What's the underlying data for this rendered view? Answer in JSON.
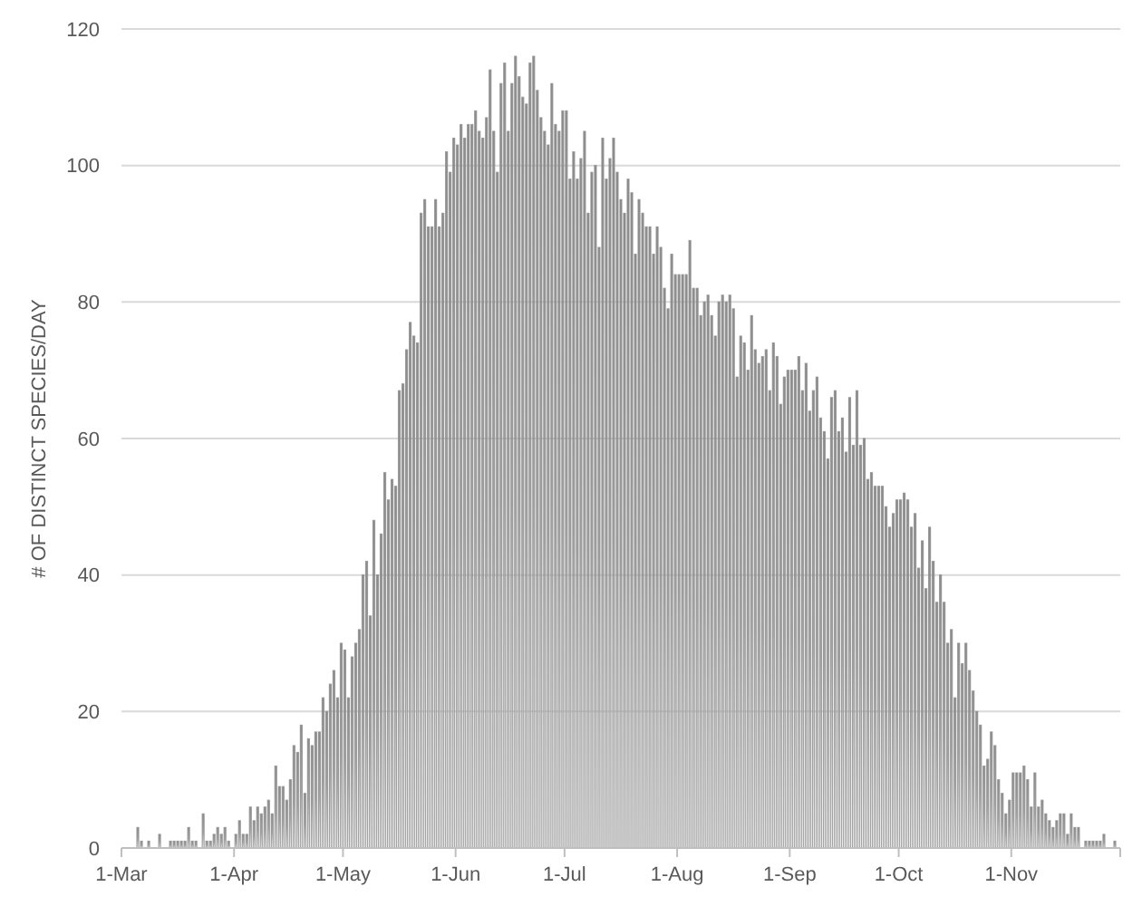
{
  "chart_data": {
    "type": "bar",
    "ylabel": "# OF DISTINCT SPECIES/DAY",
    "categories": [
      "1-Mar",
      null,
      null,
      null,
      null,
      null,
      null,
      null,
      null,
      null,
      null,
      null,
      null,
      null,
      null,
      null,
      null,
      null,
      null,
      null,
      null,
      null,
      null,
      null,
      null,
      null,
      null,
      null,
      null,
      null,
      null,
      "1-Apr",
      null,
      null,
      null,
      null,
      null,
      null,
      null,
      null,
      null,
      null,
      null,
      null,
      null,
      null,
      null,
      null,
      null,
      null,
      null,
      null,
      null,
      null,
      null,
      null,
      null,
      null,
      null,
      null,
      null,
      "1-May",
      null,
      null,
      null,
      null,
      null,
      null,
      null,
      null,
      null,
      null,
      null,
      null,
      null,
      null,
      null,
      null,
      null,
      null,
      null,
      null,
      null,
      null,
      null,
      null,
      null,
      null,
      null,
      null,
      null,
      null,
      "1-Jun",
      null,
      null,
      null,
      null,
      null,
      null,
      null,
      null,
      null,
      null,
      null,
      null,
      null,
      null,
      null,
      null,
      null,
      null,
      null,
      null,
      null,
      null,
      null,
      null,
      null,
      null,
      null,
      null,
      null,
      "1-Jul",
      null,
      null,
      null,
      null,
      null,
      null,
      null,
      null,
      null,
      null,
      null,
      null,
      null,
      null,
      null,
      null,
      null,
      null,
      null,
      null,
      null,
      null,
      null,
      null,
      null,
      null,
      null,
      null,
      null,
      null,
      "1-Aug",
      null,
      null,
      null,
      null,
      null,
      null,
      null,
      null,
      null,
      null,
      null,
      null,
      null,
      null,
      null,
      null,
      null,
      null,
      null,
      null,
      null,
      null,
      null,
      null,
      null,
      null,
      null,
      null,
      null,
      null,
      "1-Sep",
      null,
      null,
      null,
      null,
      null,
      null,
      null,
      null,
      null,
      null,
      null,
      null,
      null,
      null,
      null,
      null,
      null,
      null,
      null,
      null,
      null,
      null,
      null,
      null,
      null,
      null,
      null,
      null,
      null,
      "1-Oct",
      null,
      null,
      null,
      null,
      null,
      null,
      null,
      null,
      null,
      null,
      null,
      null,
      null,
      null,
      null,
      null,
      null,
      null,
      null,
      null,
      null,
      null,
      null,
      null,
      null,
      null,
      null,
      null,
      null,
      null,
      "1-Nov",
      null,
      null,
      null,
      null,
      null,
      null,
      null,
      null,
      null,
      null,
      null,
      null,
      null,
      null,
      null,
      null,
      null,
      null,
      null,
      null,
      null,
      null,
      null,
      null,
      null,
      null,
      null,
      null,
      null
    ],
    "values": [
      0,
      0,
      0,
      0,
      3,
      1,
      0,
      1,
      0,
      0,
      2,
      0,
      0,
      1,
      1,
      1,
      1,
      1,
      3,
      1,
      1,
      0,
      5,
      1,
      1,
      2,
      3,
      2,
      3,
      1,
      0,
      2,
      4,
      2,
      2,
      6,
      4,
      6,
      5,
      6,
      7,
      5,
      12,
      9,
      9,
      7,
      10,
      15,
      14,
      18,
      8,
      16,
      15,
      17,
      17,
      22,
      20,
      24,
      26,
      22,
      30,
      29,
      22,
      28,
      30,
      32,
      40,
      42,
      34,
      48,
      40,
      46,
      55,
      51,
      54,
      53,
      67,
      68,
      73,
      77,
      75,
      74,
      93,
      95,
      91,
      91,
      95,
      91,
      93,
      102,
      99,
      104,
      103,
      106,
      104,
      106,
      106,
      108,
      105,
      104,
      107,
      114,
      105,
      99,
      112,
      115,
      105,
      112,
      116,
      113,
      110,
      109,
      115,
      116,
      111,
      107,
      105,
      103,
      112,
      106,
      105,
      108,
      108,
      98,
      102,
      98,
      101,
      105,
      93,
      99,
      100,
      88,
      104,
      98,
      101,
      104,
      99,
      95,
      93,
      98,
      96,
      87,
      95,
      93,
      91,
      91,
      87,
      91,
      88,
      82,
      79,
      87,
      84,
      84,
      84,
      84,
      89,
      82,
      82,
      78,
      80,
      81,
      78,
      75,
      80,
      81,
      80,
      81,
      79,
      69,
      75,
      74,
      70,
      78,
      73,
      71,
      72,
      73,
      67,
      74,
      72,
      65,
      69,
      70,
      70,
      70,
      72,
      67,
      71,
      64,
      67,
      69,
      63,
      61,
      57,
      66,
      67,
      61,
      63,
      58,
      66,
      59,
      67,
      59,
      60,
      54,
      55,
      53,
      53,
      53,
      50,
      47,
      49,
      51,
      51,
      52,
      51,
      47,
      49,
      41,
      45,
      38,
      47,
      42,
      36,
      40,
      36,
      30,
      32,
      22,
      30,
      27,
      30,
      26,
      23,
      20,
      18,
      12,
      13,
      17,
      15,
      10,
      8,
      5,
      7,
      11,
      11,
      11,
      12,
      10,
      6,
      11,
      6,
      7,
      5,
      4,
      3,
      4,
      5,
      5,
      2,
      5,
      3,
      3,
      0,
      1,
      1,
      1,
      1,
      1,
      2,
      0,
      0,
      1,
      0
    ],
    "color": "#8c8c8c",
    "ylim": [
      0,
      120
    ],
    "yticks": [
      0,
      20,
      40,
      60,
      80,
      100,
      120
    ],
    "grid": "y"
  }
}
